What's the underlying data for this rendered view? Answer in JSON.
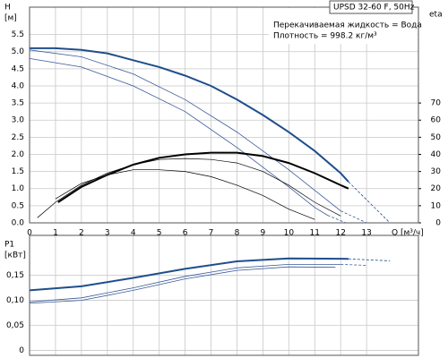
{
  "chart_data": [
    {
      "type": "line",
      "ylabel": "H",
      "yunit": "[м]",
      "y2label": "eta",
      "xlabel": "Q [м³/ч]",
      "box_title": "UPSD 32-60 F, 50Hz",
      "annotations": [
        "Перекачиваемая жидкость = Вода",
        "Плотность = 998.2 кг/м³"
      ],
      "xlim": [
        0,
        15
      ],
      "xticks": [
        0,
        1,
        2,
        3,
        4,
        5,
        6,
        7,
        8,
        9,
        10,
        11,
        12,
        13
      ],
      "ylim": [
        0,
        6.3
      ],
      "yticks": [
        {
          "value": 0,
          "label": "0.0"
        },
        0.5,
        {
          "value": 1,
          "label": "1.0"
        },
        1.5,
        {
          "value": 2,
          "label": "2.0"
        },
        2.5,
        {
          "value": 3,
          "label": "3.0"
        },
        3.5,
        {
          "value": 4,
          "label": "4.0"
        },
        4.5,
        {
          "value": 5,
          "label": "5.0"
        },
        5.5
      ],
      "y2lim": [
        0,
        126
      ],
      "y2ticks": [
        0,
        10,
        20,
        30,
        40,
        50,
        60,
        70
      ],
      "grid": true,
      "show_xtick_labels": true,
      "series": [
        {
          "color": "#1f4e8c",
          "width": 2,
          "x": [
            0,
            1,
            2,
            3,
            4,
            5,
            6,
            7,
            8,
            9,
            10,
            11,
            12,
            12.3
          ],
          "values": [
            5.1,
            5.1,
            5.05,
            4.95,
            4.75,
            4.55,
            4.3,
            4.0,
            3.6,
            3.15,
            2.65,
            2.1,
            1.45,
            1.2
          ]
        },
        {
          "color": "#1f4e8c",
          "width": 0.8,
          "style": "dashed",
          "x": [
            12.3,
            13.1,
            13.9
          ],
          "values": [
            1.2,
            0.6,
            0
          ]
        },
        {
          "color": "#3a5a9a",
          "width": 0.8,
          "x": [
            0,
            2,
            4,
            6,
            8,
            10,
            11,
            12
          ],
          "values": [
            5.05,
            4.85,
            4.35,
            3.6,
            2.65,
            1.55,
            0.95,
            0.35
          ]
        },
        {
          "color": "#3a5a9a",
          "width": 0.8,
          "style": "dashed",
          "x": [
            12,
            13
          ],
          "values": [
            0.35,
            0
          ]
        },
        {
          "color": "#3a5a9a",
          "width": 0.8,
          "x": [
            0,
            2,
            4,
            6,
            8,
            10,
            11,
            11.5
          ],
          "values": [
            4.8,
            4.55,
            4.0,
            3.25,
            2.2,
            1.05,
            0.45,
            0.22
          ]
        },
        {
          "color": "#3a5a9a",
          "width": 0.8,
          "style": "dashed",
          "x": [
            11.5,
            12.2
          ],
          "values": [
            0.22,
            0
          ]
        },
        {
          "color": "#000000",
          "width": 2,
          "axis": "y2",
          "x": [
            1.1,
            2,
            3,
            4,
            5,
            6,
            7,
            8,
            9,
            10,
            11,
            12,
            12.3
          ],
          "values": [
            12,
            21,
            28,
            34,
            38,
            40,
            41,
            41,
            39,
            35,
            29,
            22,
            20
          ]
        },
        {
          "color": "#000000",
          "width": 0.7,
          "axis": "y2",
          "x": [
            0.3,
            1,
            2,
            3,
            4,
            5,
            6,
            7,
            8,
            9,
            10,
            11,
            12
          ],
          "values": [
            3,
            12,
            22,
            29,
            34,
            37,
            37.6,
            37,
            35,
            30,
            22,
            12,
            4
          ]
        },
        {
          "color": "#000000",
          "width": 0.7,
          "axis": "y2",
          "x": [
            1,
            2,
            3,
            4,
            5,
            6,
            7,
            8,
            9,
            10,
            11
          ],
          "values": [
            14,
            23,
            28,
            31,
            31,
            30,
            27,
            22,
            16,
            8,
            2
          ]
        }
      ]
    },
    {
      "type": "line",
      "ylabel": "P1",
      "yunit": "[кВт]",
      "xlim": [
        0,
        15
      ],
      "xticks": [
        0,
        1,
        2,
        3,
        4,
        5,
        6,
        7,
        8,
        9,
        10,
        11,
        12,
        13
      ],
      "ylim": [
        -0.01,
        0.23
      ],
      "yticks": [
        0,
        {
          "value": 0.05,
          "label": "0,05"
        },
        {
          "value": 0.1,
          "label": "0,10"
        },
        {
          "value": 0.15,
          "label": "0,15"
        }
      ],
      "grid": true,
      "show_xtick_labels": false,
      "series": [
        {
          "color": "#1f4e8c",
          "width": 2,
          "x": [
            0,
            2,
            4,
            6,
            8,
            10,
            12.3
          ],
          "values": [
            0.12,
            0.128,
            0.145,
            0.163,
            0.178,
            0.184,
            0.183
          ]
        },
        {
          "color": "#1f4e8c",
          "width": 0.8,
          "style": "dashed",
          "x": [
            12.3,
            13.9
          ],
          "values": [
            0.183,
            0.179
          ]
        },
        {
          "color": "#3a5a9a",
          "width": 0.8,
          "x": [
            0,
            2,
            4,
            6,
            8,
            10,
            12
          ],
          "values": [
            0.097,
            0.105,
            0.125,
            0.148,
            0.165,
            0.172,
            0.172
          ]
        },
        {
          "color": "#3a5a9a",
          "width": 0.8,
          "style": "dashed",
          "x": [
            12,
            13
          ],
          "values": [
            0.172,
            0.17
          ]
        },
        {
          "color": "#3a5a9a",
          "width": 0.8,
          "x": [
            0,
            2,
            4,
            6,
            8,
            10,
            11.8
          ],
          "values": [
            0.094,
            0.1,
            0.12,
            0.143,
            0.16,
            0.167,
            0.166
          ]
        }
      ]
    }
  ]
}
